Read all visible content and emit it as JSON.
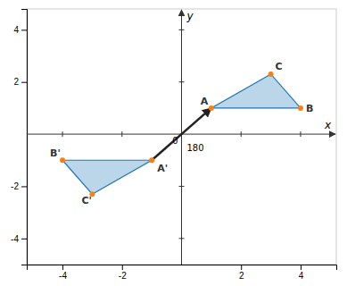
{
  "chart_data": {
    "type": "polygon",
    "series": [
      {
        "x": [
          1,
          4,
          3
        ],
        "y": [
          1,
          1,
          2.3
        ],
        "labels": [
          "A",
          "B",
          "C"
        ]
      },
      {
        "x": [
          -1,
          -4,
          -3
        ],
        "y": [
          -1,
          -1,
          -2.3
        ],
        "labels": [
          "A'",
          "B'",
          "C'"
        ]
      }
    ],
    "xlim": [
      -5.2,
      5.2
    ],
    "ylim": [
      -5.0,
      4.8
    ],
    "xticks": [
      -4,
      -2,
      2,
      4
    ],
    "yticks": [
      -4,
      -2,
      2,
      4
    ],
    "x_label": "x",
    "y_label": "y",
    "origin_label": "0",
    "annotations": [
      {
        "text": "180"
      }
    ],
    "grid": false
  }
}
